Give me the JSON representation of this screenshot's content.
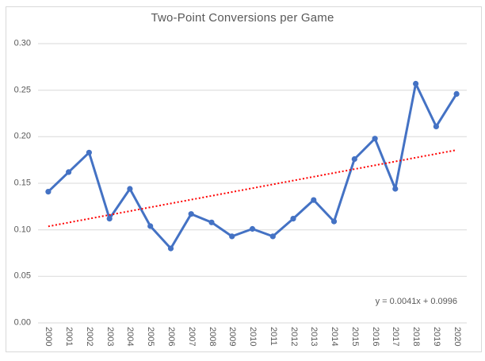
{
  "chart_data": {
    "type": "line",
    "title": "Two-Point Conversions per Game",
    "categories": [
      "2000",
      "2001",
      "2002",
      "2003",
      "2004",
      "2005",
      "2006",
      "2007",
      "2008",
      "2009",
      "2010",
      "2011",
      "2012",
      "2013",
      "2014",
      "2015",
      "2016",
      "2017",
      "2018",
      "2019",
      "2020"
    ],
    "series": [
      {
        "name": "Two-Point Conversions per Game",
        "values": [
          0.141,
          0.162,
          0.183,
          0.112,
          0.144,
          0.104,
          0.08,
          0.117,
          0.108,
          0.093,
          0.101,
          0.093,
          0.112,
          0.132,
          0.109,
          0.176,
          0.198,
          0.144,
          0.257,
          0.211,
          0.246
        ],
        "color": "#4472C4",
        "marker": "circle"
      }
    ],
    "xlabel": "",
    "ylabel": "",
    "ylim": [
      0,
      0.3
    ],
    "yticks": [
      0,
      0.05,
      0.1,
      0.15,
      0.2,
      0.25,
      0.3
    ],
    "ytick_labels": [
      "0.00",
      "0.05",
      "0.10",
      "0.15",
      "0.20",
      "0.25",
      "0.30"
    ],
    "grid": "horizontal",
    "legend_position": "none",
    "trendline": {
      "type": "linear",
      "slope": 0.0041,
      "intercept": 0.0996,
      "equation": "y = 0.0041x + 0.0996",
      "color": "#FF0000",
      "style": "dotted"
    },
    "colors": {
      "gridline": "#D9D9D9",
      "axis_text": "#595959",
      "title_text": "#595959",
      "border": "#D9D9D9",
      "background": "#FFFFFF"
    }
  }
}
